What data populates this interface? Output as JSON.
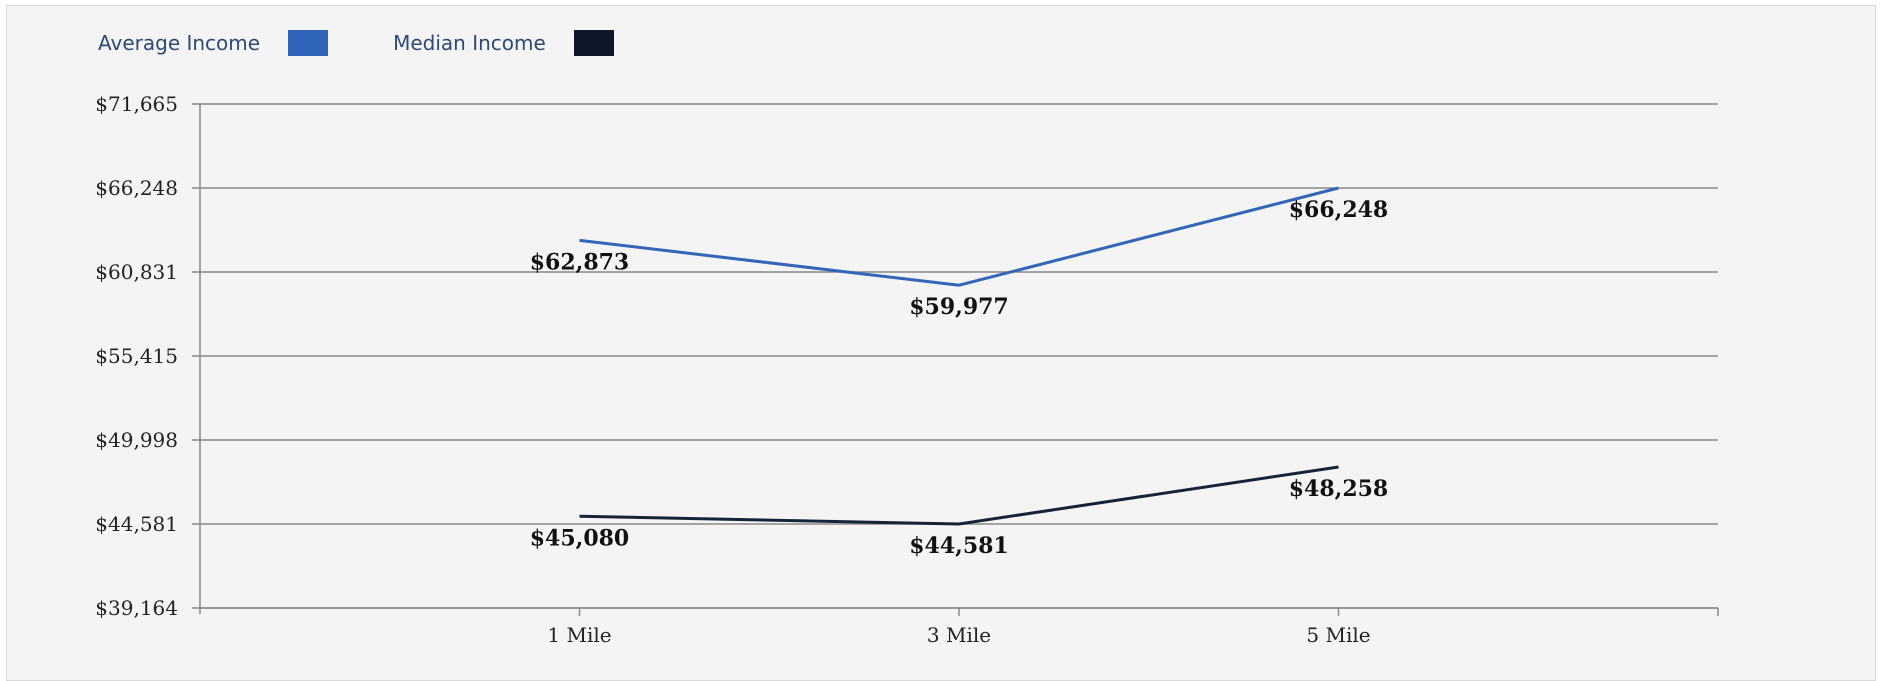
{
  "legend": [
    {
      "label": "Average Income",
      "color": "#2f64b8"
    },
    {
      "label": "Median Income",
      "color": "#0c1827"
    }
  ],
  "chart_data": {
    "type": "line",
    "categories": [
      "1 Mile",
      "3 Mile",
      "5 Mile"
    ],
    "series": [
      {
        "name": "Average Income",
        "color": "#3366b8",
        "values": [
          62873,
          59977,
          66248
        ],
        "labels": [
          "$62,873",
          "$59,977",
          "$66,248"
        ]
      },
      {
        "name": "Median Income",
        "color": "#16243a",
        "values": [
          45080,
          44581,
          48258
        ],
        "labels": [
          "$45,080",
          "$44,581",
          "$48,258"
        ]
      }
    ],
    "yticks": [
      "$71,665",
      "$66,248",
      "$60,831",
      "$55,415",
      "$49,998",
      "$44,581",
      "$39,164"
    ],
    "ylim": [
      39164,
      71665
    ],
    "grid": true,
    "legend_position": "top-left"
  }
}
